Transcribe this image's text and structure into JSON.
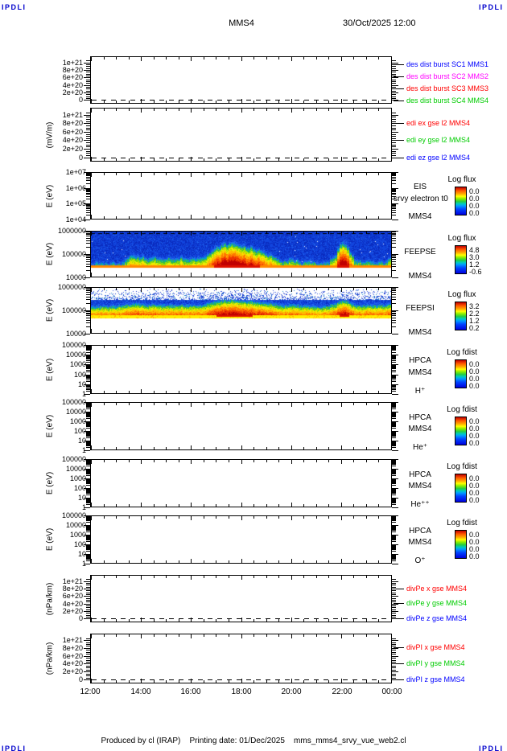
{
  "header": {
    "logo_left": "IPDLI",
    "logo_right": "IPDLI",
    "title": "MMS4",
    "datetime": "30/Oct/2025 12:00"
  },
  "footer": {
    "produced_by": "Produced by cl (IRAP)",
    "printing_date": "Printing date: 01/Dec/2025",
    "filename": "mms_mms4_srvy_vue_web2.cl",
    "logo_left": "IPDLI",
    "logo_right": "IPDLI"
  },
  "chart_data": {
    "type": "heatmap",
    "description": "MMS4 survey summary plot: 11 stacked time panels, 12:00 30/Oct/2025 to 00:00",
    "x_axis": {
      "labels": [
        "12:00",
        "14:00",
        "16:00",
        "18:00",
        "20:00",
        "22:00",
        "00:00"
      ],
      "minor_tick_minutes": 30,
      "time_bin_minutes": 15
    },
    "enhancement_intervals": [
      "13:30-16:45 weak",
      "16:45-19:30 strong",
      "21:40-22:15 strong"
    ],
    "panels": [
      {
        "name": "des-dist-burst",
        "kind": "lines",
        "unit": "",
        "yscale": "linear",
        "zero_dash": true,
        "no_data": true,
        "yticks": [
          "1e+21",
          "8e+20",
          "6e+20",
          "4e+20",
          "2e+20",
          "0"
        ],
        "legend": [
          {
            "label": "des dist burst SC1 MMS1",
            "color": "#0000ff"
          },
          {
            "label": "des dist burst SC2 MMS2",
            "color": "#ff00ff"
          },
          {
            "label": "des dist burst SC3 MMS3",
            "color": "#ff0000"
          },
          {
            "label": "des dist burst SC4 MMS4",
            "color": "#00cc00"
          }
        ]
      },
      {
        "name": "edi",
        "kind": "lines",
        "unit": "(mV/m)",
        "yscale": "linear",
        "zero_dash": true,
        "no_data": true,
        "yticks": [
          "1e+21",
          "8e+20",
          "6e+20",
          "4e+20",
          "2e+20",
          "0"
        ],
        "legend": [
          {
            "label": "edi ex gse l2 MMS4",
            "color": "#ff0000"
          },
          {
            "label": "edi ey gse l2 MMS4",
            "color": "#00cc00"
          },
          {
            "label": "edi ez gse l2 MMS4",
            "color": "#0000ff"
          }
        ]
      },
      {
        "name": "eis",
        "kind": "spectrogram",
        "unit": "E (eV)",
        "yscale": "log",
        "no_data": true,
        "yticks": [
          "1e+07",
          "1e+06",
          "1e+05",
          "1e+04"
        ],
        "right_labels": [
          "EIS",
          "srvy electron t0",
          "MMS4"
        ],
        "colorbar": {
          "title": "Log flux",
          "ticks": [
            "0.0",
            "0.0",
            "0.0",
            "0.0"
          ]
        }
      },
      {
        "name": "feepse",
        "kind": "spectrogram",
        "unit": "E (eV)",
        "yscale": "log",
        "yticks": [
          "1000000",
          "100000",
          "10000"
        ],
        "right_labels": [
          "FEEPSE",
          "MMS4"
        ],
        "colorbar": {
          "title": "Log flux",
          "ticks": [
            "4.8",
            "3.0",
            "1.2",
            "-0.6"
          ]
        },
        "spectro": {
          "model": "electron",
          "energy_range_ev": [
            10000,
            1000000
          ],
          "base_band_ev": [
            25000,
            37000
          ],
          "activity": [
            0.05,
            0.05,
            0.06,
            0.05,
            0.05,
            0.08,
            0.35,
            0.28,
            0.32,
            0.22,
            0.3,
            0.24,
            0.3,
            0.2,
            0.28,
            0.22,
            0.26,
            0.3,
            0.38,
            0.55,
            0.72,
            0.78,
            0.8,
            0.76,
            0.7,
            0.64,
            0.55,
            0.45,
            0.38,
            0.3,
            0.15,
            0.22,
            0.15,
            0.1,
            0.1,
            0.08,
            0.1,
            0.12,
            0.3,
            0.85,
            0.7,
            0.25,
            0.15,
            0.1,
            0.1,
            0.1,
            0.15,
            0.25
          ]
        }
      },
      {
        "name": "feepsi",
        "kind": "spectrogram",
        "unit": "E (eV)",
        "yscale": "log",
        "yticks": [
          "1000000",
          "100000",
          "10000"
        ],
        "right_labels": [
          "FEEPSI",
          "MMS4"
        ],
        "colorbar": {
          "title": "Log flux",
          "ticks": [
            "3.2",
            "2.2",
            "1.2",
            "0.2"
          ]
        },
        "spectro": {
          "model": "ion",
          "energy_range_ev": [
            10000,
            1000000
          ],
          "base_band_ev": [
            45000,
            60000
          ],
          "activity": [
            0.2,
            0.2,
            0.22,
            0.2,
            0.25,
            0.3,
            0.4,
            0.45,
            0.4,
            0.35,
            0.4,
            0.35,
            0.35,
            0.3,
            0.35,
            0.3,
            0.3,
            0.35,
            0.45,
            0.6,
            0.75,
            0.8,
            0.85,
            0.8,
            0.75,
            0.7,
            0.6,
            0.55,
            0.5,
            0.4,
            0.3,
            0.35,
            0.3,
            0.25,
            0.2,
            0.18,
            0.2,
            0.25,
            0.4,
            0.8,
            0.75,
            0.35,
            0.3,
            0.3,
            0.3,
            0.3,
            0.35,
            0.4
          ]
        }
      },
      {
        "name": "hpca-h",
        "kind": "spectrogram",
        "unit": "E (eV)",
        "yscale": "log",
        "no_data": true,
        "yticks": [
          "100000",
          "10000",
          "1000",
          "100",
          "10",
          "1"
        ],
        "right_labels": [
          "HPCA",
          "MMS4",
          "H⁺"
        ],
        "colorbar": {
          "title": "Log fdist",
          "ticks": [
            "0.0",
            "0.0",
            "0.0",
            "0.0"
          ]
        }
      },
      {
        "name": "hpca-he",
        "kind": "spectrogram",
        "unit": "E (eV)",
        "yscale": "log",
        "no_data": true,
        "yticks": [
          "100000",
          "10000",
          "1000",
          "100",
          "10",
          "1"
        ],
        "right_labels": [
          "HPCA",
          "MMS4",
          "He⁺"
        ],
        "colorbar": {
          "title": "Log fdist",
          "ticks": [
            "0.0",
            "0.0",
            "0.0",
            "0.0"
          ]
        }
      },
      {
        "name": "hpca-hepp",
        "kind": "spectrogram",
        "unit": "E (eV)",
        "yscale": "log",
        "no_data": true,
        "yticks": [
          "100000",
          "10000",
          "1000",
          "100",
          "10",
          "1"
        ],
        "right_labels": [
          "HPCA",
          "MMS4",
          "He⁺⁺"
        ],
        "colorbar": {
          "title": "Log fdist",
          "ticks": [
            "0.0",
            "0.0",
            "0.0",
            "0.0"
          ]
        }
      },
      {
        "name": "hpca-o",
        "kind": "spectrogram",
        "unit": "E (eV)",
        "yscale": "log",
        "no_data": true,
        "yticks": [
          "100000",
          "10000",
          "1000",
          "100",
          "10",
          "1"
        ],
        "right_labels": [
          "HPCA",
          "MMS4",
          "O⁺"
        ],
        "colorbar": {
          "title": "Log fdist",
          "ticks": [
            "0.0",
            "0.0",
            "0.0",
            "0.0"
          ]
        }
      },
      {
        "name": "divpe",
        "kind": "lines",
        "unit": "(nPa/km)",
        "yscale": "linear",
        "zero_dash": true,
        "no_data": true,
        "yticks": [
          "1e+21",
          "8e+20",
          "6e+20",
          "4e+20",
          "2e+20",
          "0"
        ],
        "legend": [
          {
            "label": "divPe x gse MMS4",
            "color": "#ff0000"
          },
          {
            "label": "divPe y gse MMS4",
            "color": "#00cc00"
          },
          {
            "label": "divPe z gse MMS4",
            "color": "#0000ff"
          }
        ]
      },
      {
        "name": "divpi",
        "kind": "lines",
        "unit": "(nPa/km)",
        "yscale": "linear",
        "zero_dash": true,
        "no_data": true,
        "yticks": [
          "1e+21",
          "8e+20",
          "6e+20",
          "4e+20",
          "2e+20",
          "0"
        ],
        "legend": [
          {
            "label": "divPI x gse MMS4",
            "color": "#ff0000"
          },
          {
            "label": "divPI y gse MMS4",
            "color": "#00cc00"
          },
          {
            "label": "divPI z gse MMS4",
            "color": "#0000ff"
          }
        ]
      }
    ]
  }
}
